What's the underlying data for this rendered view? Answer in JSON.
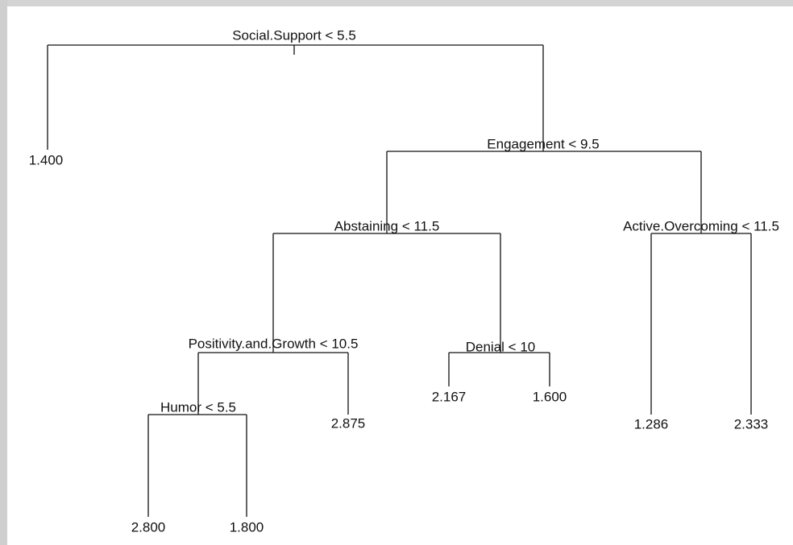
{
  "nodes": [
    {
      "label": "Social.Support < 5.5"
    },
    {
      "label": "1.400"
    },
    {
      "label": "Engagement < 9.5"
    },
    {
      "label": "Abstaining < 11.5"
    },
    {
      "label": "Active.Overcoming < 11.5"
    },
    {
      "label": "Positivity.and.Growth < 10.5"
    },
    {
      "label": "Denial < 10"
    },
    {
      "label": "Humor < 5.5"
    },
    {
      "label": "2.875"
    },
    {
      "label": "2.167"
    },
    {
      "label": "1.600"
    },
    {
      "label": "1.286"
    },
    {
      "label": "2.333"
    },
    {
      "label": "2.800"
    },
    {
      "label": "1.800"
    }
  ]
}
